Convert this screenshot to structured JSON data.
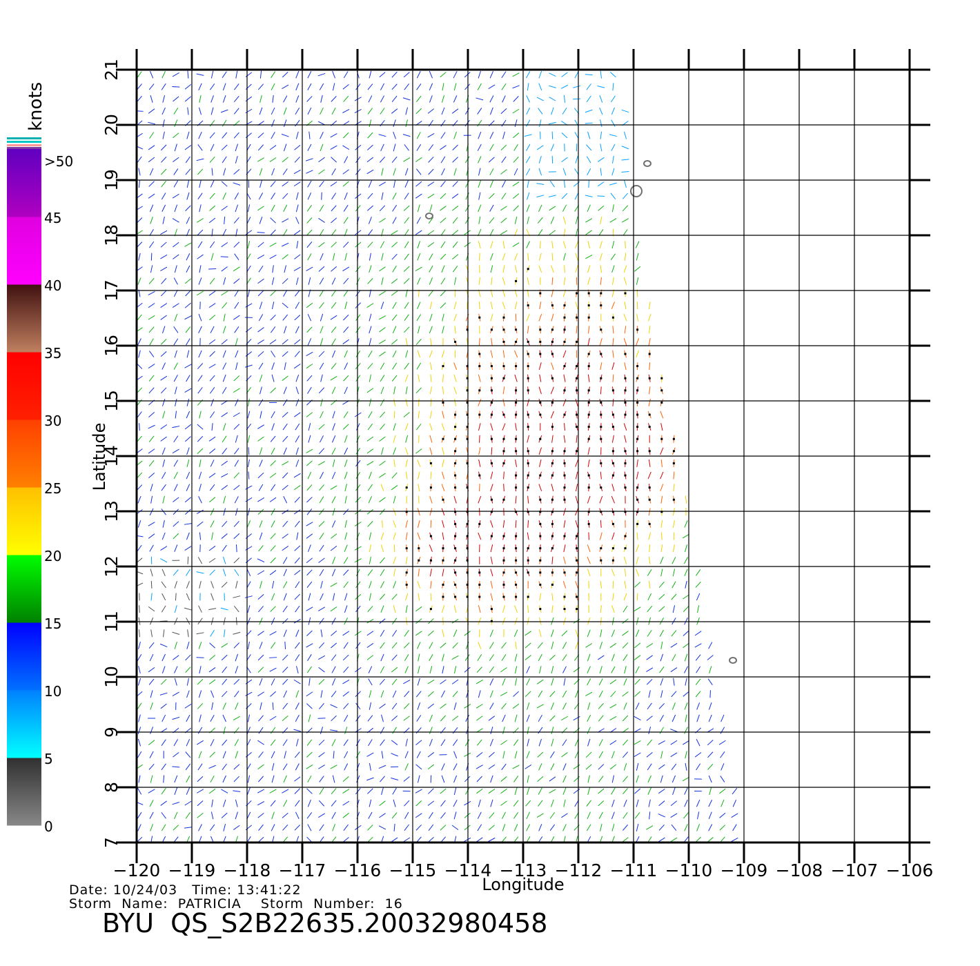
{
  "map": {
    "xlabel": "Longitude",
    "ylabel": "Latitude",
    "lon_range": [
      -120,
      -106
    ],
    "lat_range": [
      7,
      21
    ],
    "lon_ticks": [
      "−120",
      "−119",
      "−118",
      "−117",
      "−116",
      "−115",
      "−114",
      "−113",
      "−112",
      "−111",
      "−110",
      "−109",
      "−108",
      "−107",
      "−106"
    ],
    "lat_ticks": [
      "7",
      "8",
      "9",
      "10",
      "11",
      "12",
      "13",
      "14",
      "15",
      "16",
      "17",
      "18",
      "19",
      "20",
      "21"
    ],
    "grid": true,
    "swath_color": "wind speed",
    "islands": [
      {
        "lon": -114.7,
        "lat": 18.35
      },
      {
        "lon": -110.95,
        "lat": 18.8
      },
      {
        "lon": -110.75,
        "lat": 19.3
      },
      {
        "lon": -109.2,
        "lat": 10.3
      }
    ]
  },
  "colorbar": {
    "units": "knots",
    "labels": [
      "0",
      "5",
      "10",
      "15",
      "20",
      "25",
      "30",
      "35",
      "40",
      "45",
      ">50"
    ],
    "colors": {
      "0-5": [
        "#888888",
        "#303030"
      ],
      "5-10": [
        "#00ffff",
        "#0080ff"
      ],
      "10-15": [
        "#0070ff",
        "#0000ff"
      ],
      "15-20": [
        "#008000",
        "#00ff00"
      ],
      "20-25": [
        "#ffff00",
        "#ffc000"
      ],
      "25-30": [
        "#ff8000",
        "#ff4000"
      ],
      "30-35": [
        "#ff2000",
        "#ff0000"
      ],
      "35-40": [
        "#c08060",
        "#401010"
      ],
      "40-45": [
        "#ff00ff",
        "#e000e0"
      ],
      "45-50": [
        "#b000c0",
        "#6000c0"
      ]
    }
  },
  "footer": {
    "line1": "Date: 10/24/03   Time: 13:41:22",
    "line2": "Storm  Name:  PATRICIA    Storm  Number:  16",
    "product": "BYU  QS_S2B22635.20032980458"
  }
}
